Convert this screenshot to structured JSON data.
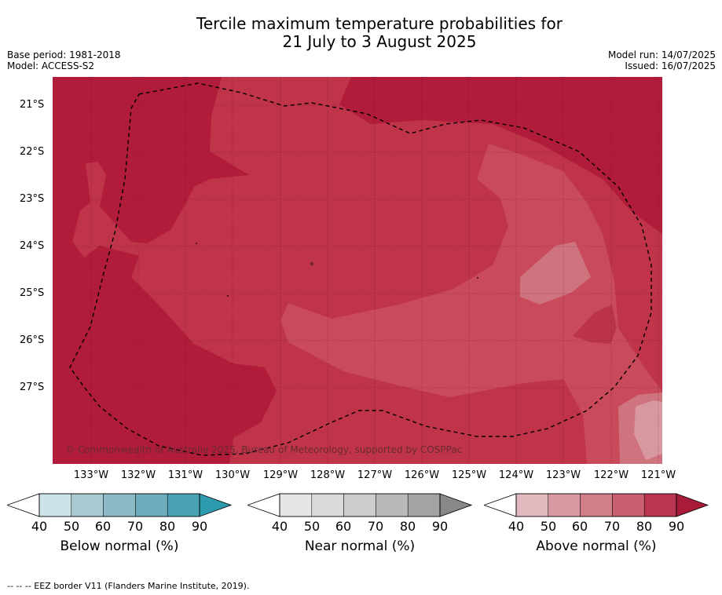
{
  "title_line1": "Tercile maximum temperature probabilities for",
  "title_line2": "21 July to 3 August 2025",
  "base_period": "Base period: 1981-2018",
  "model": "Model: ACCESS-S2",
  "model_run": "Model run: 14/07/2025",
  "issued": "Issued: 16/07/2025",
  "copyright": "© Commonwealth of Australia 2025, Bureau of Meteorology, supported by COSPPac",
  "footnote": "--  --  -- EEZ border V11 (Flanders Marine Institute, 2019).",
  "lat_labels": [
    "21°S",
    "22°S",
    "23°S",
    "24°S",
    "25°S",
    "26°S",
    "27°S"
  ],
  "lon_labels": [
    "133°W",
    "132°W",
    "131°W",
    "130°W",
    "129°W",
    "128°W",
    "127°W",
    "126°W",
    "125°W",
    "124°W",
    "123°W",
    "122°W",
    "121°W"
  ],
  "colorbars": [
    {
      "title": "Below normal (%)",
      "ticks": [
        "40",
        "50",
        "60",
        "70",
        "80",
        "90"
      ],
      "colors": [
        "#cce3e8",
        "#a8c9d0",
        "#8cbac6",
        "#6fadbc",
        "#4aa3b5",
        "#2e9ab0"
      ]
    },
    {
      "title": "Near normal (%)",
      "ticks": [
        "40",
        "50",
        "60",
        "70",
        "80",
        "90"
      ],
      "colors": [
        "#e6e6e6",
        "#d9d9d9",
        "#cccccc",
        "#b9b9b9",
        "#a3a3a3",
        "#888888"
      ]
    },
    {
      "title": "Above normal (%)",
      "ticks": [
        "40",
        "50",
        "60",
        "70",
        "80",
        "90"
      ],
      "colors": [
        "#e3b9c0",
        "#d99aa4",
        "#d27e89",
        "#c9606f",
        "#bb3450",
        "#a81c3a"
      ]
    }
  ],
  "colors": {
    "above_90": "#b01c3a",
    "above_80": "#bf3449",
    "above_70": "#c84a5b",
    "above_60": "#cf737e",
    "above_50": "#d8989f"
  }
}
